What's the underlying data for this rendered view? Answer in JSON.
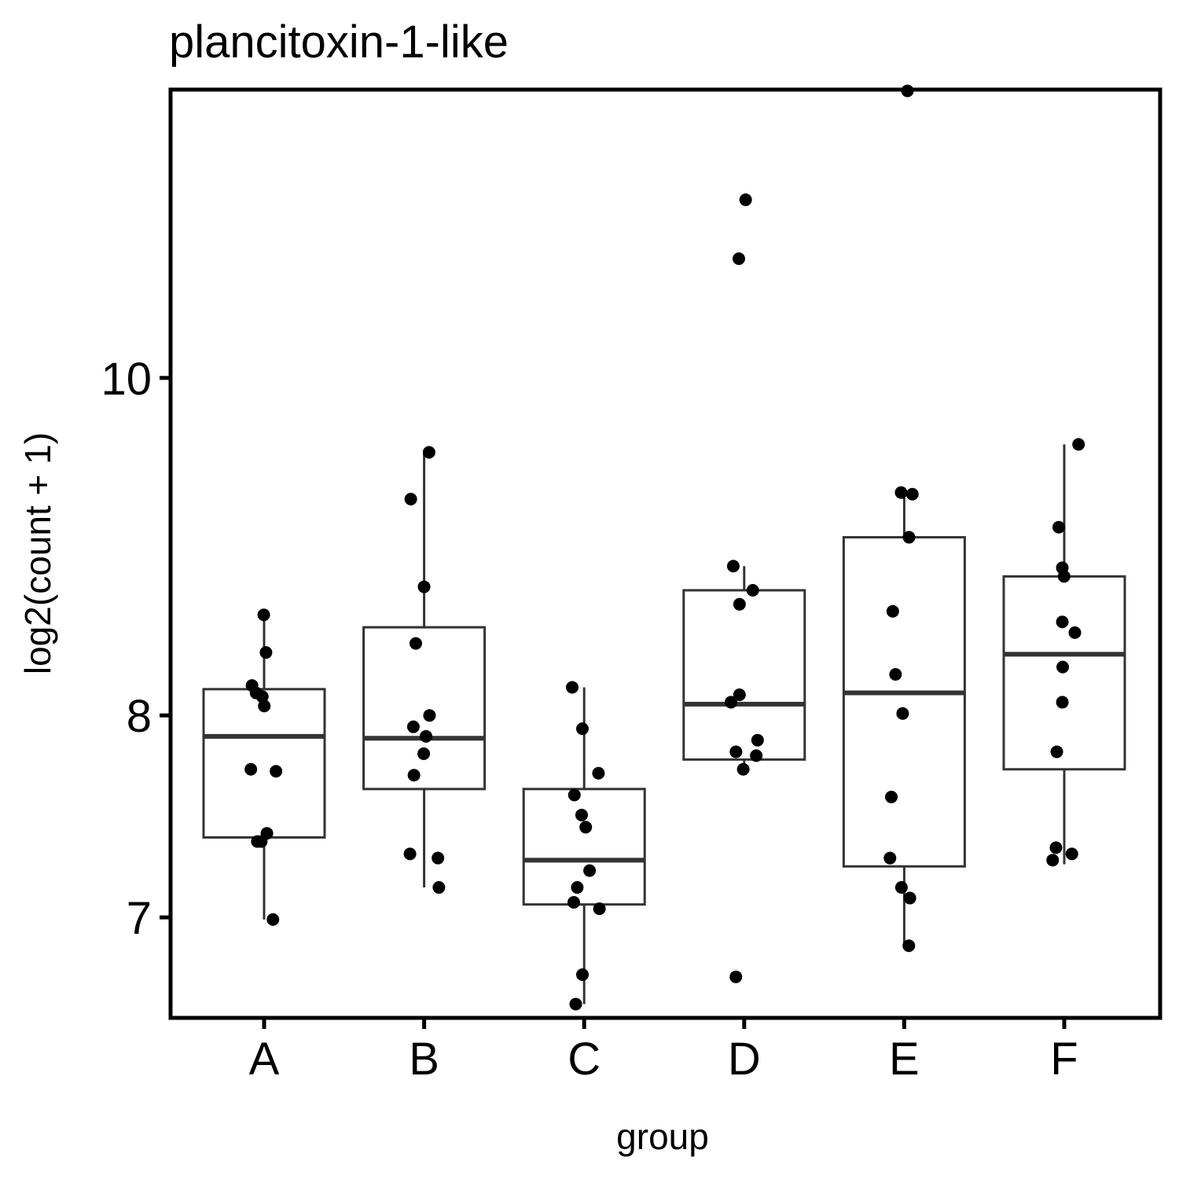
{
  "chart_data": {
    "type": "box",
    "title": "plancitoxin-1-like",
    "xlabel": "group",
    "ylabel": "log2(count + 1)",
    "y_scale": "log",
    "ylim": [
      6.55,
      12.1
    ],
    "yticks": [
      7,
      8,
      10
    ],
    "ytick_labels": [
      "7",
      "8",
      "10"
    ],
    "categories": [
      "A",
      "B",
      "C",
      "D",
      "E",
      "F"
    ],
    "grid": false,
    "legend": "none",
    "boxes": [
      {
        "group": "A",
        "whisker_low": 6.99,
        "q1": 7.38,
        "median": 7.89,
        "q3": 8.14,
        "whisker_high": 8.55
      },
      {
        "group": "B",
        "whisker_low": 7.14,
        "q1": 7.62,
        "median": 7.88,
        "q3": 8.48,
        "whisker_high": 9.52
      },
      {
        "group": "C",
        "whisker_low": 6.61,
        "q1": 7.06,
        "median": 7.27,
        "q3": 7.62,
        "whisker_high": 8.15
      },
      {
        "group": "D",
        "whisker_low": 7.74,
        "q1": 7.77,
        "median": 8.06,
        "q3": 8.69,
        "whisker_high": 8.83
      },
      {
        "group": "E",
        "whisker_low": 6.87,
        "q1": 7.24,
        "median": 8.12,
        "q3": 9.0,
        "whisker_high": 9.27
      },
      {
        "group": "F",
        "whisker_low": 7.25,
        "q1": 7.72,
        "median": 8.33,
        "q3": 8.77,
        "whisker_high": 9.57
      }
    ],
    "points": [
      {
        "group": "A",
        "y": [
          8.55,
          8.34,
          8.16,
          8.12,
          8.1,
          8.05,
          7.72,
          7.71,
          7.4,
          7.36,
          7.36,
          6.99
        ]
      },
      {
        "group": "B",
        "y": [
          9.52,
          9.23,
          8.71,
          8.39,
          8.0,
          7.94,
          7.89,
          7.8,
          7.69,
          7.3,
          7.28,
          7.14
        ]
      },
      {
        "group": "C",
        "y": [
          8.15,
          7.93,
          7.7,
          7.59,
          7.49,
          7.43,
          7.22,
          7.14,
          7.07,
          7.04,
          6.74,
          6.61
        ]
      },
      {
        "group": "D",
        "y": [
          11.25,
          10.82,
          8.83,
          8.69,
          8.61,
          8.11,
          8.07,
          7.87,
          7.81,
          7.79,
          7.72,
          6.73
        ]
      },
      {
        "group": "E",
        "y": [
          12.09,
          9.27,
          9.26,
          9.0,
          8.57,
          8.22,
          8.01,
          7.58,
          7.28,
          7.14,
          7.09,
          6.87
        ]
      },
      {
        "group": "F",
        "y": [
          9.57,
          9.06,
          8.82,
          8.77,
          8.51,
          8.45,
          8.26,
          8.07,
          7.81,
          7.33,
          7.3,
          7.27
        ]
      }
    ]
  }
}
